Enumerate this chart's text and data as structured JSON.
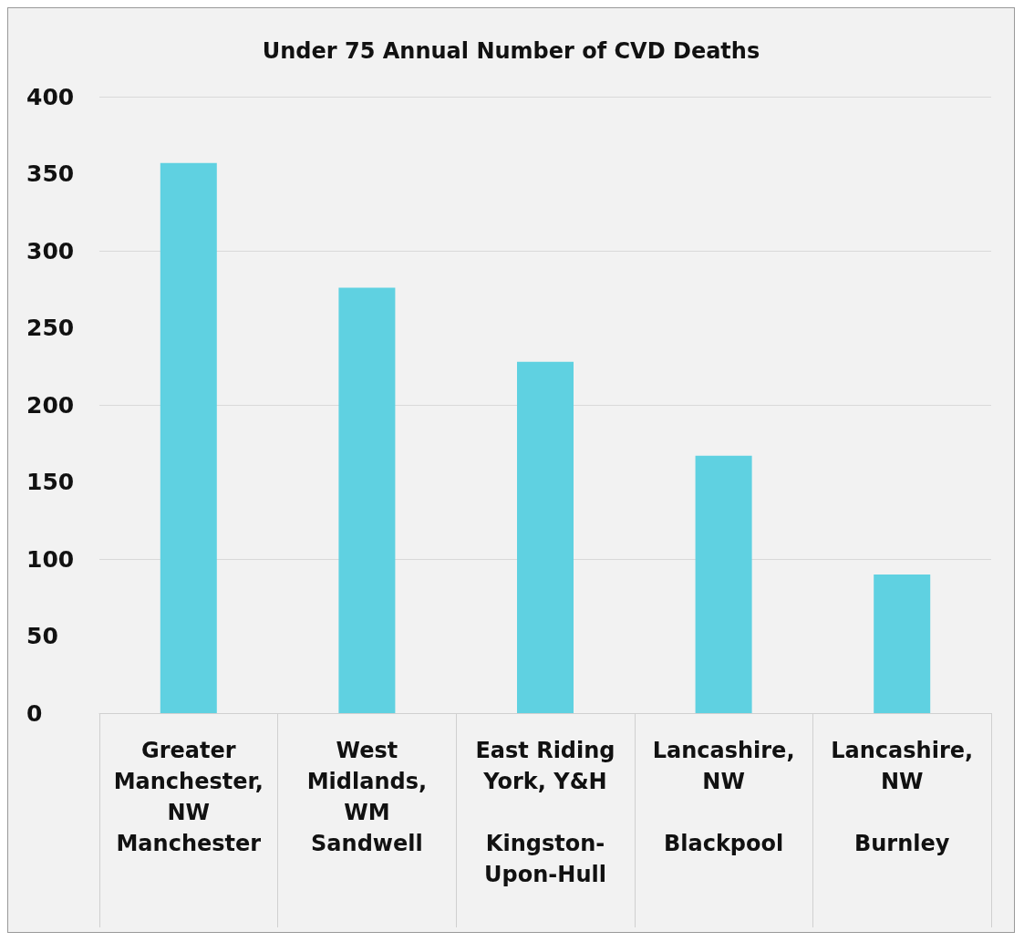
{
  "chart_data": {
    "type": "bar",
    "title": "Under 75 Annual Number of CVD Deaths",
    "categories": [
      "Greater Manchester, NW\nManchester",
      "West Midlands, WM\nSandwell",
      "East Riding York, Y&H\nKingston-Upon-Hull",
      "Lancashire, NW\nBlackpool",
      "Lancashire, NW\nBurnley"
    ],
    "values": [
      357,
      276,
      228,
      167,
      90
    ],
    "color": "#5fd1e1",
    "ylim": [
      0,
      400
    ],
    "yticks": [
      0,
      50,
      100,
      150,
      200,
      250,
      300,
      350,
      400
    ],
    "grid": "y"
  }
}
